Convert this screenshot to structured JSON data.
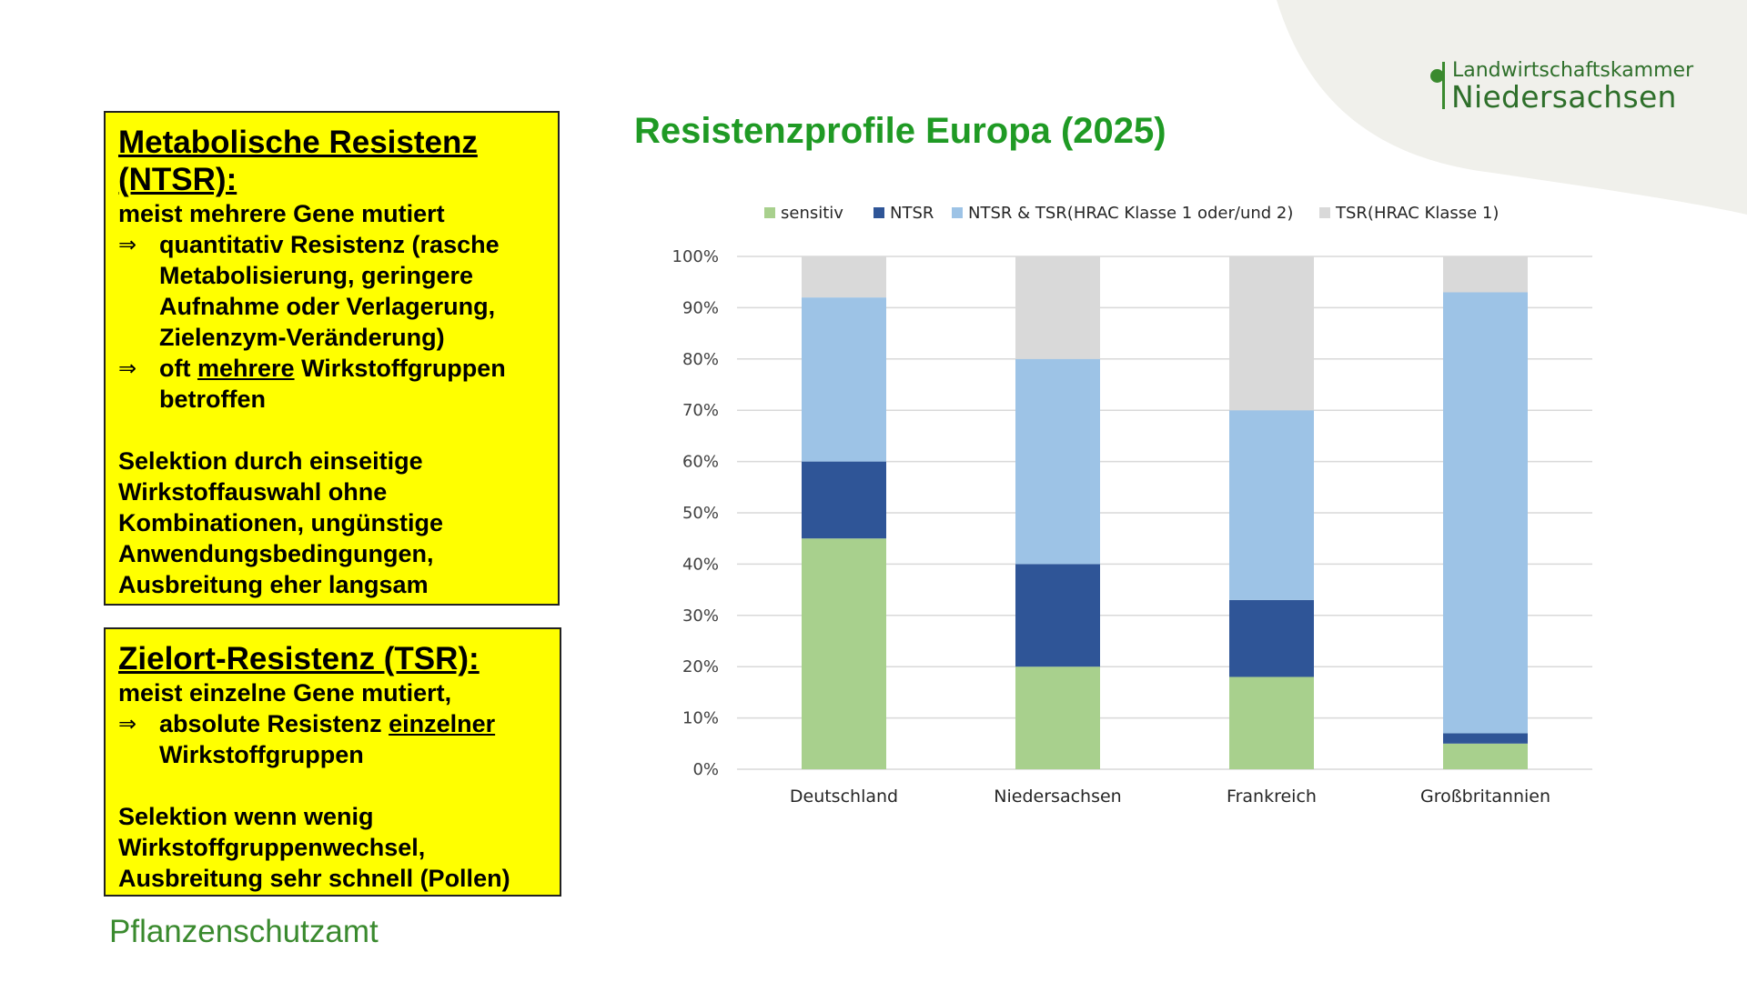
{
  "logo": {
    "line1": "Landwirtschaftskammer",
    "line2": "Niedersachsen"
  },
  "box_metabolic": {
    "title": "Metabolische Resistenz (NTSR):",
    "line1": "meist mehrere Gene mutiert",
    "bullet1": "quantitativ Resistenz (rasche Metabolisierung, geringere Aufnahme oder Verlagerung, Zielenzym-Veränderung)",
    "bullet2_pre": "oft ",
    "bullet2_underlined": "mehrere",
    "bullet2_post": " Wirkstoffgruppen betroffen",
    "paragraph": "Selektion durch einseitige Wirkstoffauswahl ohne Kombinationen, ungünstige Anwendungsbedingungen, Ausbreitung eher langsam"
  },
  "box_target": {
    "title": "Zielort-Resistenz (TSR):",
    "line1": "meist einzelne Gene mutiert,",
    "bullet1_pre": "absolute Resistenz ",
    "bullet1_underlined": "einzelner",
    "bullet1_post": " Wirkstoffgruppen",
    "paragraph": "Selektion wenn wenig Wirkstoffgruppenwechsel, Ausbreitung sehr schnell (Pollen)"
  },
  "arrow_symbol": "⇒",
  "footer": "Pflanzenschutzamt",
  "colors": {
    "title_green": "#1f9a24",
    "box_yellow": "#ffff00",
    "sensitiv": "#a8d08d",
    "ntsr": "#2f5597",
    "ntsr_tsr": "#9dc3e6",
    "tsr": "#d9d9d9"
  },
  "chart_data": {
    "type": "bar",
    "stacked": true,
    "title": "Resistenzprofile Europa (2025)",
    "categories": [
      "Deutschland",
      "Niedersachsen",
      "Frankreich",
      "Großbritannien"
    ],
    "series": [
      {
        "name": "sensitiv",
        "color": "#a8d08d",
        "values": [
          45,
          20,
          18,
          5
        ]
      },
      {
        "name": "NTSR",
        "color": "#2f5597",
        "values": [
          15,
          20,
          15,
          2
        ]
      },
      {
        "name": "NTSR & TSR(HRAC Klasse 1 oder/und 2)",
        "color": "#9dc3e6",
        "values": [
          32,
          40,
          37,
          86
        ]
      },
      {
        "name": "TSR(HRAC Klasse 1)",
        "color": "#d9d9d9",
        "values": [
          8,
          20,
          30,
          7
        ]
      }
    ],
    "ylim": [
      0,
      100
    ],
    "yticks": [
      "0%",
      "10%",
      "20%",
      "30%",
      "40%",
      "50%",
      "60%",
      "70%",
      "80%",
      "90%",
      "100%"
    ],
    "grid": true,
    "legend_position": "top"
  }
}
